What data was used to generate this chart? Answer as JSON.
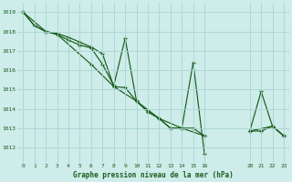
{
  "title": "Graphe pression niveau de la mer (hPa)",
  "bg_color": "#cdecea",
  "grid_color": "#a8d5d0",
  "line_color": "#1a5c1a",
  "xlim": [
    -0.5,
    23.5
  ],
  "ylim": [
    1011.2,
    1019.5
  ],
  "xticks": [
    0,
    1,
    2,
    3,
    4,
    5,
    6,
    7,
    8,
    9,
    10,
    11,
    12,
    13,
    14,
    15,
    16,
    20,
    21,
    22,
    23
  ],
  "yticks": [
    1012,
    1013,
    1014,
    1015,
    1016,
    1017,
    1018,
    1019
  ],
  "series1": [
    [
      0,
      1019.0
    ],
    [
      1,
      1018.3
    ],
    [
      2,
      1018.0
    ],
    [
      3,
      1017.85
    ],
    [
      4,
      1017.55
    ],
    [
      5,
      1017.3
    ],
    [
      6,
      1017.15
    ],
    [
      7,
      1016.3
    ],
    [
      8,
      1015.2
    ],
    [
      9,
      1017.65
    ],
    [
      10,
      1014.4
    ],
    [
      11,
      1013.85
    ],
    [
      12,
      1013.5
    ],
    [
      13,
      1013.0
    ],
    [
      14,
      1013.0
    ],
    [
      15,
      1016.4
    ],
    [
      16,
      1011.65
    ],
    [
      20,
      1012.85
    ],
    [
      21,
      1014.9
    ],
    [
      22,
      1013.1
    ],
    [
      23,
      1012.6
    ]
  ],
  "series2": [
    [
      0,
      1019.0
    ],
    [
      1,
      1018.3
    ],
    [
      2,
      1018.0
    ],
    [
      3,
      1017.9
    ],
    [
      4,
      1017.7
    ],
    [
      5,
      1017.45
    ],
    [
      6,
      1017.2
    ],
    [
      7,
      1016.85
    ],
    [
      8,
      1015.15
    ],
    [
      9,
      1015.1
    ],
    [
      10,
      1014.4
    ],
    [
      11,
      1013.85
    ],
    [
      12,
      1013.5
    ],
    [
      13,
      1013.0
    ],
    [
      14,
      1013.0
    ],
    [
      15,
      1013.0
    ],
    [
      16,
      1012.6
    ],
    [
      20,
      1012.85
    ],
    [
      21,
      1012.85
    ],
    [
      22,
      1013.1
    ],
    [
      23,
      1012.6
    ]
  ],
  "series3": [
    [
      0,
      1019.0
    ],
    [
      2,
      1018.0
    ],
    [
      3,
      1017.85
    ],
    [
      6,
      1016.3
    ],
    [
      8,
      1015.15
    ],
    [
      10,
      1014.4
    ],
    [
      12,
      1013.5
    ],
    [
      14,
      1013.0
    ],
    [
      16,
      1012.6
    ],
    [
      20,
      1012.85
    ],
    [
      22,
      1013.1
    ],
    [
      23,
      1012.6
    ]
  ]
}
